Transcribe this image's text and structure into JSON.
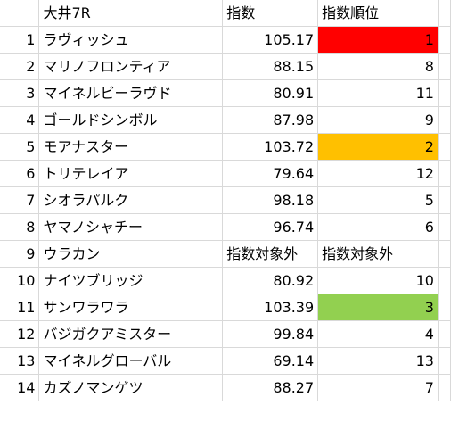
{
  "header": {
    "row_number": "",
    "race": "大井7R",
    "score": "指数",
    "rank": "指数順位"
  },
  "rows": [
    {
      "num": "1",
      "horse": "ラヴィッシュ",
      "score": "105.17",
      "rank": "1",
      "highlight": "#ff0000"
    },
    {
      "num": "2",
      "horse": "マリノフロンティア",
      "score": "88.15",
      "rank": "8",
      "highlight": ""
    },
    {
      "num": "3",
      "horse": "マイネルビーラヴド",
      "score": "80.91",
      "rank": "11",
      "highlight": ""
    },
    {
      "num": "4",
      "horse": "ゴールドシンボル",
      "score": "87.98",
      "rank": "9",
      "highlight": ""
    },
    {
      "num": "5",
      "horse": "モアナスター",
      "score": "103.72",
      "rank": "2",
      "highlight": "#ffc000"
    },
    {
      "num": "6",
      "horse": "トリテレイア",
      "score": "79.64",
      "rank": "12",
      "highlight": ""
    },
    {
      "num": "7",
      "horse": "シオラパルク",
      "score": "98.18",
      "rank": "5",
      "highlight": ""
    },
    {
      "num": "8",
      "horse": "ヤマノシャチー",
      "score": "96.74",
      "rank": "6",
      "highlight": ""
    },
    {
      "num": "9",
      "horse": "ウラカン",
      "score": "指数対象外",
      "rank": "指数対象外",
      "highlight": "",
      "excluded": true
    },
    {
      "num": "10",
      "horse": "ナイツブリッジ",
      "score": "80.92",
      "rank": "10",
      "highlight": ""
    },
    {
      "num": "11",
      "horse": "サンワラワラ",
      "score": "103.39",
      "rank": "3",
      "highlight": "#92d050"
    },
    {
      "num": "12",
      "horse": "バジガクアミスター",
      "score": "99.84",
      "rank": "4",
      "highlight": ""
    },
    {
      "num": "13",
      "horse": "マイネルグローバル",
      "score": "69.14",
      "rank": "13",
      "highlight": ""
    },
    {
      "num": "14",
      "horse": "カズノマンゲツ",
      "score": "88.27",
      "rank": "7",
      "highlight": ""
    }
  ]
}
